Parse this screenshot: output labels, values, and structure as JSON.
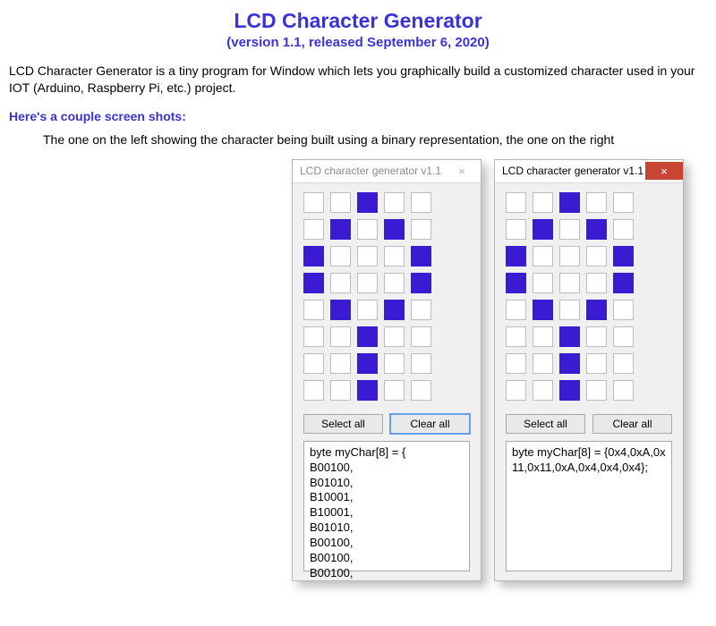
{
  "heading": {
    "title": "LCD Character Generator",
    "subtitle": "(version 1.1, released September 6, 2020)"
  },
  "intro": "LCD Character Generator is a tiny program for Window which lets you graphically build a customized character used in your IOT (Arduino, Raspberry Pi, etc.) project.",
  "shots_heading": "Here's a couple screen shots:",
  "shots_caption": "The one on the left showing the character being built using a binary representation, the one on the right",
  "windows": [
    {
      "title": "LCD character generator v1.1",
      "active": false,
      "close_label": "×",
      "grid": {
        "rows": 8,
        "cols": 5,
        "on_color": "#3a1bd1",
        "off_color": "#ffffff",
        "border_color": "#bcbcbc",
        "cells": [
          [
            0,
            0,
            1,
            0,
            0
          ],
          [
            0,
            1,
            0,
            1,
            0
          ],
          [
            1,
            0,
            0,
            0,
            1
          ],
          [
            1,
            0,
            0,
            0,
            1
          ],
          [
            0,
            1,
            0,
            1,
            0
          ],
          [
            0,
            0,
            1,
            0,
            0
          ],
          [
            0,
            0,
            1,
            0,
            0
          ],
          [
            0,
            0,
            1,
            0,
            0
          ]
        ]
      },
      "buttons": {
        "select_all": "Select all",
        "clear_all": "Clear all",
        "focus": "clear_all"
      },
      "code": "byte myChar[8] = {\nB00100,\nB01010,\nB10001,\nB10001,\nB01010,\nB00100,\nB00100,\nB00100,"
    },
    {
      "title": "LCD character generator v1.1",
      "active": true,
      "close_label": "×",
      "grid": {
        "rows": 8,
        "cols": 5,
        "on_color": "#3a1bd1",
        "off_color": "#ffffff",
        "border_color": "#bcbcbc",
        "cells": [
          [
            0,
            0,
            1,
            0,
            0
          ],
          [
            0,
            1,
            0,
            1,
            0
          ],
          [
            1,
            0,
            0,
            0,
            1
          ],
          [
            1,
            0,
            0,
            0,
            1
          ],
          [
            0,
            1,
            0,
            1,
            0
          ],
          [
            0,
            0,
            1,
            0,
            0
          ],
          [
            0,
            0,
            1,
            0,
            0
          ],
          [
            0,
            0,
            1,
            0,
            0
          ]
        ]
      },
      "buttons": {
        "select_all": "Select all",
        "clear_all": "Clear all",
        "focus": null
      },
      "code": "byte myChar[8] = {0x4,0xA,0x11,0x11,0xA,0x4,0x4,0x4};"
    }
  ],
  "colors": {
    "accent": "#3a32d8",
    "window_bg": "#f0f0f0",
    "window_border": "#b6b6b6",
    "close_active_bg": "#c74633"
  }
}
